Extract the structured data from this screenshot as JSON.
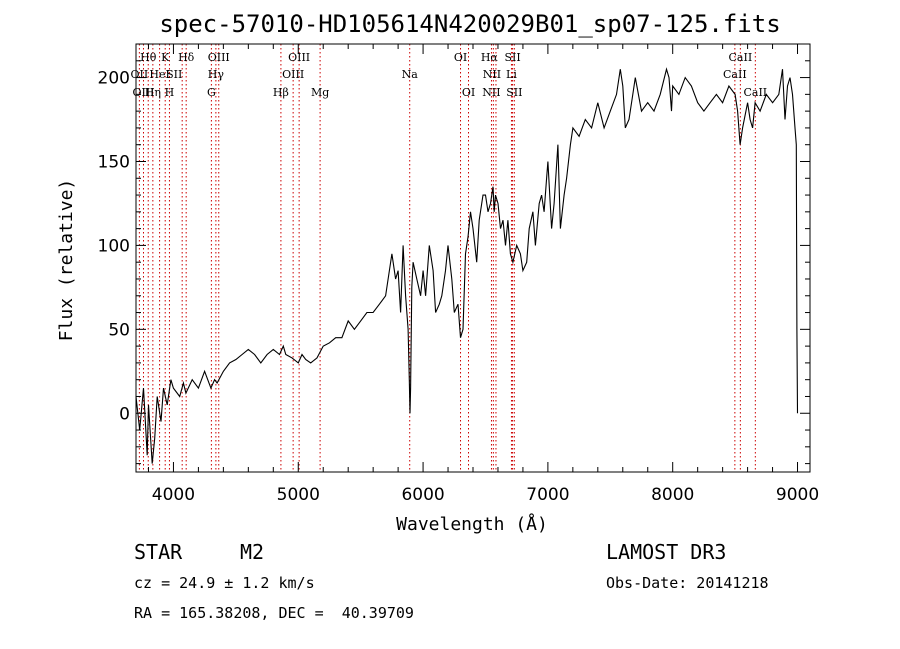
{
  "chart_data": {
    "type": "line",
    "title": "spec-57010-HD105614N420029B01_sp07-125.fits",
    "xlabel": "Wavelength (Å)",
    "ylabel": "Flux (relative)",
    "xlim": [
      3700,
      9100
    ],
    "ylim": [
      -35,
      220
    ],
    "xticks": [
      4000,
      5000,
      6000,
      7000,
      8000,
      9000
    ],
    "yticks": [
      0,
      50,
      100,
      150,
      200
    ],
    "series": [
      {
        "name": "flux",
        "x": [
          3700,
          3730,
          3760,
          3790,
          3800,
          3830,
          3850,
          3870,
          3900,
          3920,
          3950,
          3980,
          4000,
          4050,
          4080,
          4100,
          4150,
          4200,
          4250,
          4300,
          4330,
          4350,
          4400,
          4450,
          4500,
          4550,
          4600,
          4650,
          4700,
          4750,
          4800,
          4850,
          4880,
          4900,
          4950,
          5000,
          5030,
          5060,
          5100,
          5150,
          5200,
          5250,
          5300,
          5350,
          5400,
          5450,
          5500,
          5550,
          5600,
          5650,
          5700,
          5750,
          5780,
          5800,
          5820,
          5840,
          5860,
          5880,
          5890,
          5895,
          5900,
          5910,
          5920,
          5950,
          5980,
          6000,
          6020,
          6050,
          6080,
          6100,
          6130,
          6150,
          6180,
          6200,
          6230,
          6250,
          6280,
          6300,
          6320,
          6340,
          6360,
          6380,
          6400,
          6430,
          6450,
          6480,
          6500,
          6520,
          6540,
          6560,
          6570,
          6580,
          6600,
          6620,
          6640,
          6660,
          6680,
          6700,
          6720,
          6750,
          6780,
          6800,
          6830,
          6850,
          6880,
          6900,
          6930,
          6950,
          6970,
          6990,
          7000,
          7030,
          7050,
          7080,
          7100,
          7130,
          7150,
          7180,
          7200,
          7250,
          7300,
          7350,
          7400,
          7450,
          7500,
          7550,
          7580,
          7600,
          7620,
          7650,
          7680,
          7700,
          7750,
          7800,
          7850,
          7900,
          7950,
          7970,
          7990,
          8000,
          8050,
          8100,
          8150,
          8200,
          8250,
          8300,
          8350,
          8400,
          8450,
          8500,
          8520,
          8540,
          8560,
          8600,
          8620,
          8640,
          8660,
          8700,
          8750,
          8800,
          8850,
          8880,
          8900,
          8920,
          8940,
          8960,
          8980,
          8990,
          8995,
          9000
        ],
        "values": [
          10,
          -10,
          15,
          -25,
          5,
          -30,
          -15,
          10,
          -5,
          15,
          5,
          20,
          15,
          10,
          18,
          12,
          20,
          15,
          25,
          15,
          20,
          18,
          25,
          30,
          32,
          35,
          38,
          35,
          30,
          35,
          38,
          35,
          40,
          35,
          33,
          30,
          35,
          32,
          30,
          33,
          40,
          42,
          45,
          45,
          55,
          50,
          55,
          60,
          60,
          65,
          70,
          95,
          80,
          85,
          60,
          100,
          70,
          50,
          20,
          0,
          15,
          75,
          90,
          80,
          70,
          85,
          70,
          100,
          85,
          60,
          65,
          70,
          85,
          100,
          80,
          60,
          65,
          45,
          50,
          95,
          105,
          120,
          110,
          90,
          115,
          130,
          130,
          120,
          125,
          135,
          120,
          130,
          125,
          110,
          115,
          100,
          115,
          95,
          90,
          100,
          95,
          85,
          90,
          110,
          120,
          100,
          125,
          130,
          120,
          140,
          150,
          110,
          125,
          160,
          110,
          130,
          140,
          160,
          170,
          165,
          175,
          170,
          185,
          170,
          180,
          190,
          205,
          195,
          170,
          175,
          190,
          200,
          180,
          185,
          180,
          190,
          205,
          200,
          180,
          195,
          190,
          200,
          195,
          185,
          180,
          185,
          190,
          185,
          195,
          190,
          180,
          160,
          170,
          185,
          175,
          170,
          185,
          180,
          190,
          185,
          190,
          205,
          175,
          195,
          200,
          190,
          170,
          160,
          50,
          0
        ]
      }
    ],
    "lines": [
      {
        "name": "Hθ",
        "x": 3798,
        "row": 1,
        "dx": 0
      },
      {
        "name": "K",
        "x": 3934,
        "row": 1,
        "dx": 0
      },
      {
        "name": "Hδ",
        "x": 4102,
        "row": 1,
        "dx": 0
      },
      {
        "name": "OIII",
        "x": 4363,
        "row": 1,
        "dx": 0
      },
      {
        "name": "OIII",
        "x": 5007,
        "row": 1,
        "dx": 0
      },
      {
        "name": "OI",
        "x": 6300,
        "row": 1,
        "dx": 0
      },
      {
        "name": "Hα",
        "x": 6563,
        "row": 1,
        "dx": -4
      },
      {
        "name": "SII",
        "x": 6717,
        "row": 1,
        "dx": 0
      },
      {
        "name": "CaII",
        "x": 8542,
        "row": 1,
        "dx": 0
      },
      {
        "name": "OII",
        "x": 3727,
        "row": 2,
        "dx": 0
      },
      {
        "name": "HeI",
        "x": 3889,
        "row": 2,
        "dx": 0
      },
      {
        "name": "SII",
        "x": 4070,
        "row": 2,
        "dx": -8
      },
      {
        "name": "Hγ",
        "x": 4340,
        "row": 2,
        "dx": 0
      },
      {
        "name": "OIII",
        "x": 4959,
        "row": 2,
        "dx": 0
      },
      {
        "name": "Na",
        "x": 5893,
        "row": 2,
        "dx": 0
      },
      {
        "name": "NII",
        "x": 6584,
        "row": 2,
        "dx": -4
      },
      {
        "name": "Li",
        "x": 6708,
        "row": 2,
        "dx": 0
      },
      {
        "name": "CaII",
        "x": 8498,
        "row": 2,
        "dx": 0
      },
      {
        "name": "OIII",
        "x": 3760,
        "row": 3,
        "dx": 0
      },
      {
        "name": "Hη",
        "x": 3835,
        "row": 3,
        "dx": 0
      },
      {
        "name": "H",
        "x": 3968,
        "row": 3,
        "dx": 0
      },
      {
        "name": "G",
        "x": 4304,
        "row": 3,
        "dx": 0
      },
      {
        "name": "Hβ",
        "x": 4861,
        "row": 3,
        "dx": 0
      },
      {
        "name": "Mg",
        "x": 5175,
        "row": 3,
        "dx": 0
      },
      {
        "name": "OI",
        "x": 6364,
        "row": 3,
        "dx": 0
      },
      {
        "name": "NII",
        "x": 6548,
        "row": 3,
        "dx": 0
      },
      {
        "name": "SII",
        "x": 6731,
        "row": 3,
        "dx": 0
      },
      {
        "name": "CaII",
        "x": 8662,
        "row": 3,
        "dx": 0
      }
    ]
  },
  "info": {
    "object_type": "STAR",
    "subclass": "M2",
    "survey": "LAMOST DR3",
    "redshift": "cz = 24.9 ± 1.2 km/s",
    "obs_date": "Obs-Date: 20141218",
    "coords": "RA = 165.38208, DEC =  40.39709"
  },
  "colors": {
    "line_marker": "#cc0000",
    "spectrum": "#000000"
  }
}
